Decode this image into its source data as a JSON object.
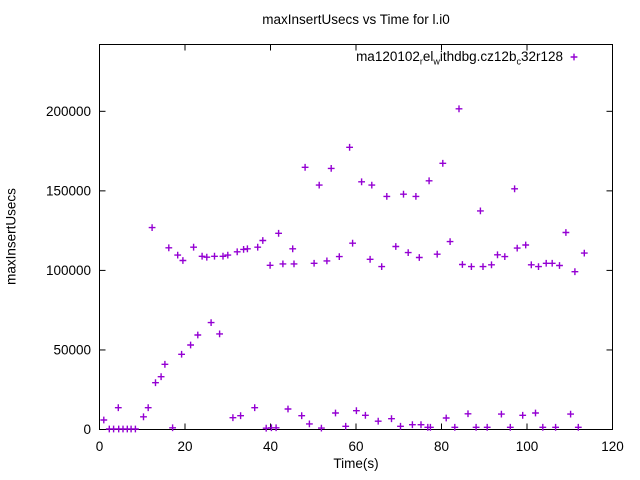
{
  "title": "maxInsertUsecs vs Time for l.i0",
  "axes": {
    "xlabel": "Time(s)",
    "ylabel": "maxInsertUsecs"
  },
  "legend": {
    "label_raw": "ma120102_rel_withdbg.cz12b_c32r128",
    "display_parts": [
      {
        "text": "ma120102"
      },
      {
        "text": "r",
        "subscript": true
      },
      {
        "text": "el"
      },
      {
        "text": "w",
        "subscript": true
      },
      {
        "text": "ithdbg.cz12b"
      },
      {
        "text": "c",
        "subscript": true
      },
      {
        "text": "32r128"
      }
    ],
    "marker": "plus-icon",
    "marker_color": "#9400d3"
  },
  "colors": {
    "marker": "#9400d3",
    "axis": "#000000",
    "background": "#ffffff",
    "text": "#000000"
  },
  "chart_data": {
    "type": "scatter",
    "title": "maxInsertUsecs vs Time for l.i0",
    "xlabel": "Time(s)",
    "ylabel": "maxInsertUsecs",
    "xlim": [
      0,
      120
    ],
    "ylim": [
      0,
      242000
    ],
    "xticks": [
      0,
      20,
      40,
      60,
      80,
      100,
      120
    ],
    "yticks": [
      0,
      50000,
      100000,
      150000,
      200000
    ],
    "grid": false,
    "legend_position": "top-right-inside",
    "marker": "plus",
    "series": [
      {
        "name": "ma120102_rel_withdbg.cz12b_c32r128",
        "color": "#9400d3",
        "points": [
          [
            1.0,
            6000
          ],
          [
            2.3,
            300
          ],
          [
            3.3,
            300
          ],
          [
            4.4,
            13700
          ],
          [
            4.5,
            300
          ],
          [
            5.5,
            300
          ],
          [
            6.5,
            300
          ],
          [
            7.4,
            300
          ],
          [
            8.4,
            300
          ],
          [
            10.3,
            8000
          ],
          [
            11.4,
            13700
          ],
          [
            12.3,
            126900
          ],
          [
            13.1,
            29400
          ],
          [
            14.4,
            33200
          ],
          [
            15.3,
            41000
          ],
          [
            16.2,
            114200
          ],
          [
            17.1,
            1100
          ],
          [
            18.3,
            109600
          ],
          [
            19.2,
            47300
          ],
          [
            19.5,
            106200
          ],
          [
            21.3,
            53100
          ],
          [
            22.0,
            114600
          ],
          [
            23.0,
            59400
          ],
          [
            24.0,
            108900
          ],
          [
            25.1,
            108300
          ],
          [
            26.1,
            67200
          ],
          [
            26.9,
            108900
          ],
          [
            28.1,
            60100
          ],
          [
            28.9,
            108900
          ],
          [
            30.0,
            109600
          ],
          [
            31.2,
            7400
          ],
          [
            32.2,
            111700
          ],
          [
            33.0,
            8700
          ],
          [
            33.7,
            113200
          ],
          [
            34.6,
            113600
          ],
          [
            36.3,
            13700
          ],
          [
            37.0,
            114600
          ],
          [
            38.2,
            118800
          ],
          [
            39.0,
            800
          ],
          [
            39.9,
            103200
          ],
          [
            40.2,
            1100
          ],
          [
            41.3,
            1100
          ],
          [
            41.9,
            123300
          ],
          [
            42.9,
            104100
          ],
          [
            44.1,
            12900
          ],
          [
            45.2,
            113600
          ],
          [
            45.5,
            104100
          ],
          [
            47.3,
            8700
          ],
          [
            48.1,
            164800
          ],
          [
            49.1,
            3500
          ],
          [
            50.2,
            104500
          ],
          [
            51.4,
            153600
          ],
          [
            51.9,
            900
          ],
          [
            53.2,
            106000
          ],
          [
            54.2,
            164100
          ],
          [
            55.2,
            10400
          ],
          [
            56.1,
            108700
          ],
          [
            57.6,
            2000
          ],
          [
            58.5,
            177400
          ],
          [
            59.2,
            117100
          ],
          [
            60.1,
            11800
          ],
          [
            61.3,
            155700
          ],
          [
            62.2,
            8900
          ],
          [
            63.3,
            107000
          ],
          [
            63.7,
            153600
          ],
          [
            65.2,
            5200
          ],
          [
            66.0,
            102400
          ],
          [
            67.2,
            146500
          ],
          [
            68.3,
            6800
          ],
          [
            69.3,
            115000
          ],
          [
            70.4,
            2000
          ],
          [
            71.1,
            147900
          ],
          [
            72.2,
            111200
          ],
          [
            73.2,
            3000
          ],
          [
            74.0,
            146500
          ],
          [
            74.8,
            108100
          ],
          [
            75.2,
            3000
          ],
          [
            76.8,
            1400
          ],
          [
            77.1,
            156300
          ],
          [
            77.4,
            1400
          ],
          [
            79.0,
            110200
          ],
          [
            80.3,
            167300
          ],
          [
            81.1,
            7200
          ],
          [
            82.0,
            118100
          ],
          [
            83.1,
            1400
          ],
          [
            84.1,
            201600
          ],
          [
            84.9,
            103700
          ],
          [
            86.2,
            9900
          ],
          [
            87.0,
            102400
          ],
          [
            88.1,
            1400
          ],
          [
            89.1,
            137400
          ],
          [
            89.7,
            102400
          ],
          [
            90.7,
            1400
          ],
          [
            91.7,
            103500
          ],
          [
            93.1,
            109800
          ],
          [
            94.0,
            9700
          ],
          [
            94.8,
            108700
          ],
          [
            96.1,
            1400
          ],
          [
            97.1,
            151300
          ],
          [
            97.7,
            114000
          ],
          [
            99.0,
            8900
          ],
          [
            99.7,
            116000
          ],
          [
            101.0,
            103500
          ],
          [
            102.0,
            10400
          ],
          [
            102.7,
            102400
          ],
          [
            103.7,
            1400
          ],
          [
            104.5,
            104500
          ],
          [
            105.9,
            104500
          ],
          [
            106.7,
            1400
          ],
          [
            107.6,
            103100
          ],
          [
            109.1,
            123800
          ],
          [
            110.2,
            9700
          ],
          [
            111.2,
            99200
          ],
          [
            112.0,
            1400
          ],
          [
            113.4,
            110900
          ]
        ]
      }
    ]
  }
}
